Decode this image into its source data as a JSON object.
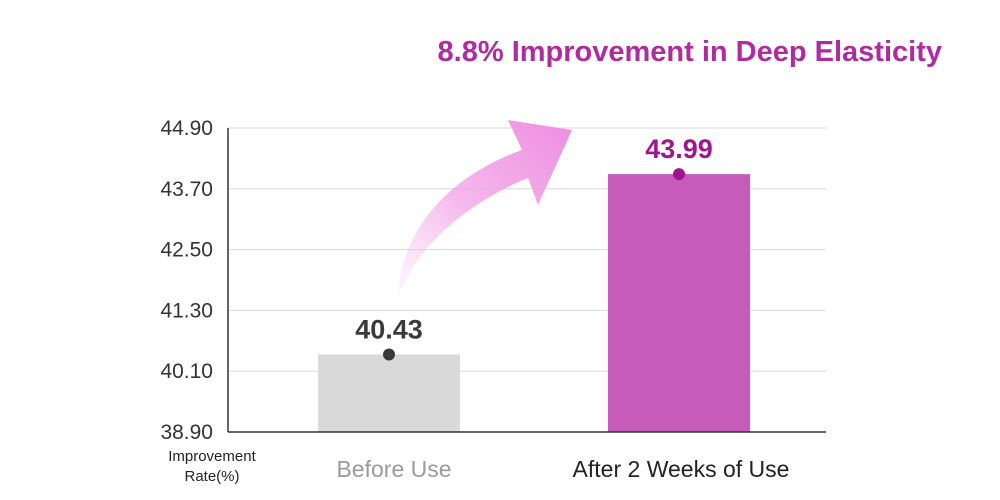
{
  "headline": "8.8% Improvement in Deep Elasticity",
  "chart_data": {
    "type": "bar",
    "title": "8.8% Improvement in Deep Elasticity",
    "categories": [
      "Before Use",
      "After 2 Weeks of Use"
    ],
    "values": [
      40.43,
      43.99
    ],
    "value_labels": [
      "40.43",
      "43.99"
    ],
    "ylabel_lines": [
      "Improvement",
      "Rate(%)"
    ],
    "yticks": [
      "38.90",
      "40.10",
      "41.30",
      "42.50",
      "43.70",
      "44.90"
    ],
    "ylim": [
      38.9,
      44.9
    ],
    "grid": true,
    "colors": {
      "before_bar": "#d9d9d9",
      "after_bar": "#c65bba",
      "before_label": "#9a9a9a",
      "after_label": "#222222",
      "before_value": "#3a3a3a",
      "after_value": "#a0158f",
      "before_dot": "#3a3a3a",
      "after_dot": "#a0158f",
      "arrow": "#ef8fe2",
      "headline": "#b02aa0",
      "grid": "#d8d8d8",
      "axis": "#333333"
    }
  }
}
